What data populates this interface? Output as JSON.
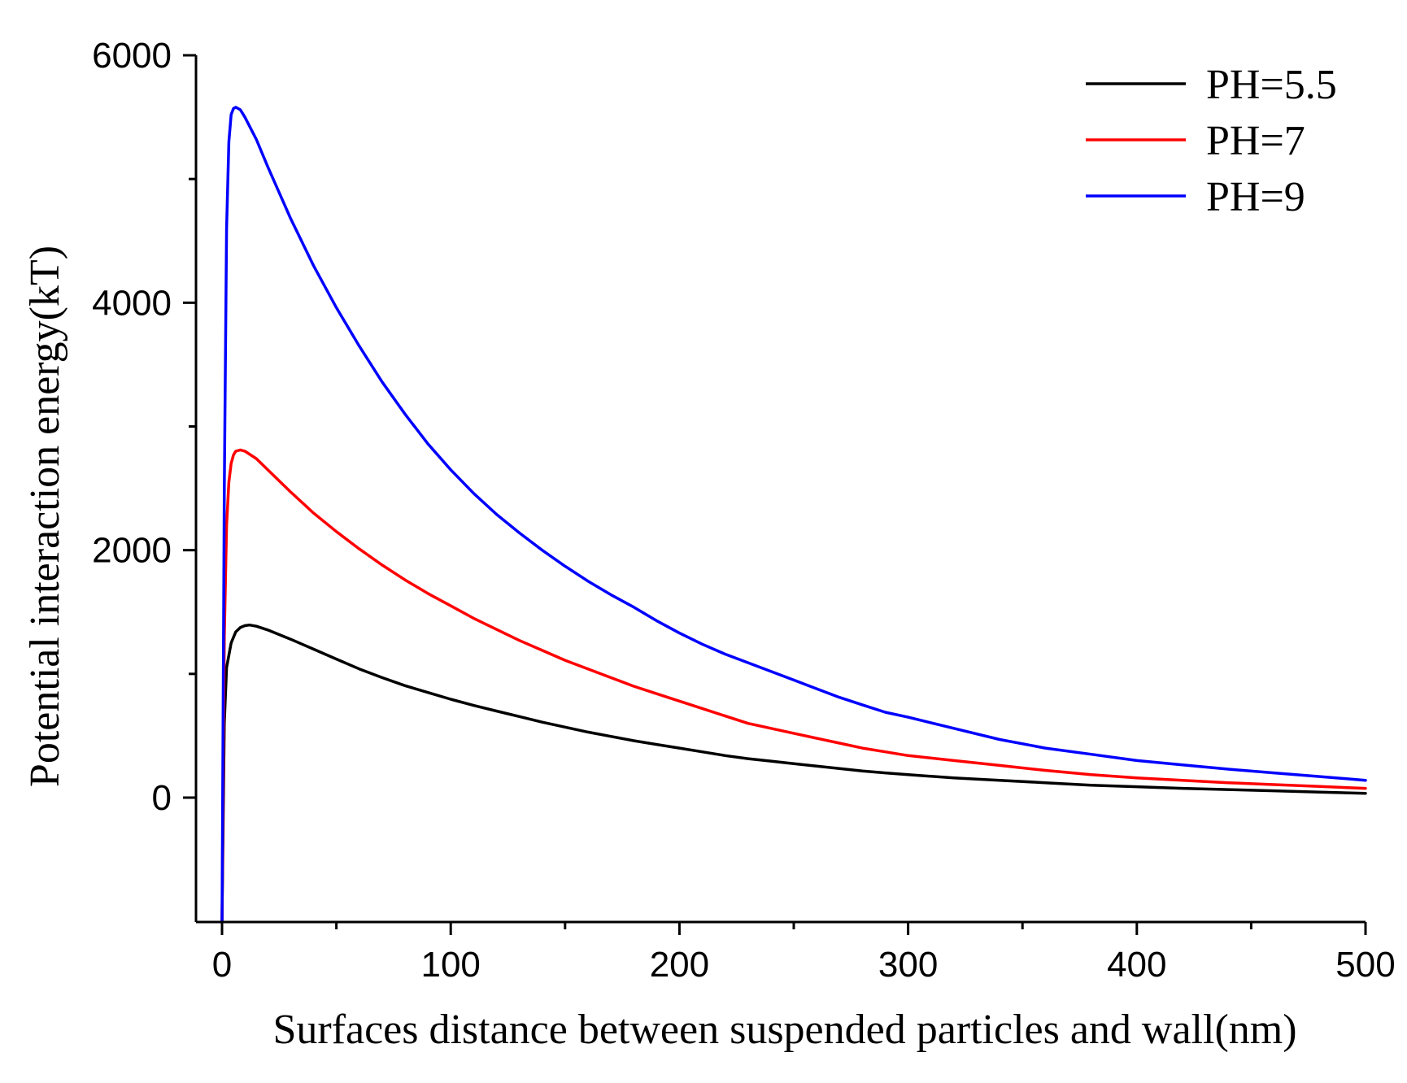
{
  "chart_data": {
    "type": "line",
    "xlabel": "Surfaces distance between suspended particles and wall(nm)",
    "ylabel": "Potential interaction energy(kT)",
    "xlim": [
      -12,
      500
    ],
    "ylim": [
      -1000,
      6000
    ],
    "x_ticks": [
      0,
      100,
      200,
      300,
      400,
      500
    ],
    "x_minor_ticks": [
      50,
      150,
      250,
      350,
      450
    ],
    "y_ticks": [
      0,
      2000,
      4000,
      6000
    ],
    "y_minor_ticks": [
      1000,
      3000,
      5000
    ],
    "grid": false,
    "legend_position": "top-right",
    "series": [
      {
        "name": "PH=5.5",
        "color": "#000000",
        "points": [
          [
            0,
            -1000
          ],
          [
            1,
            600
          ],
          [
            2,
            1050
          ],
          [
            4,
            1250
          ],
          [
            6,
            1340
          ],
          [
            8,
            1375
          ],
          [
            10,
            1390
          ],
          [
            12,
            1395
          ],
          [
            15,
            1385
          ],
          [
            20,
            1355
          ],
          [
            30,
            1280
          ],
          [
            40,
            1200
          ],
          [
            50,
            1120
          ],
          [
            60,
            1040
          ],
          [
            70,
            970
          ],
          [
            80,
            905
          ],
          [
            90,
            850
          ],
          [
            100,
            795
          ],
          [
            110,
            745
          ],
          [
            120,
            700
          ],
          [
            130,
            655
          ],
          [
            140,
            610
          ],
          [
            150,
            570
          ],
          [
            160,
            530
          ],
          [
            170,
            495
          ],
          [
            180,
            460
          ],
          [
            190,
            430
          ],
          [
            200,
            400
          ],
          [
            210,
            370
          ],
          [
            220,
            340
          ],
          [
            230,
            315
          ],
          [
            240,
            295
          ],
          [
            250,
            275
          ],
          [
            260,
            255
          ],
          [
            270,
            235
          ],
          [
            280,
            215
          ],
          [
            290,
            200
          ],
          [
            300,
            185
          ],
          [
            320,
            160
          ],
          [
            340,
            140
          ],
          [
            360,
            120
          ],
          [
            380,
            100
          ],
          [
            400,
            88
          ],
          [
            420,
            75
          ],
          [
            440,
            65
          ],
          [
            460,
            55
          ],
          [
            480,
            45
          ],
          [
            500,
            35
          ]
        ]
      },
      {
        "name": "PH=7",
        "color": "#ff0000",
        "points": [
          [
            0,
            -1000
          ],
          [
            1,
            1300
          ],
          [
            2,
            2200
          ],
          [
            3,
            2550
          ],
          [
            4,
            2700
          ],
          [
            5,
            2770
          ],
          [
            6,
            2800
          ],
          [
            8,
            2810
          ],
          [
            10,
            2800
          ],
          [
            15,
            2740
          ],
          [
            20,
            2650
          ],
          [
            30,
            2470
          ],
          [
            40,
            2300
          ],
          [
            50,
            2150
          ],
          [
            60,
            2010
          ],
          [
            70,
            1880
          ],
          [
            80,
            1760
          ],
          [
            90,
            1650
          ],
          [
            100,
            1550
          ],
          [
            110,
            1450
          ],
          [
            120,
            1360
          ],
          [
            130,
            1270
          ],
          [
            140,
            1190
          ],
          [
            150,
            1110
          ],
          [
            160,
            1040
          ],
          [
            170,
            970
          ],
          [
            180,
            900
          ],
          [
            190,
            840
          ],
          [
            200,
            780
          ],
          [
            210,
            720
          ],
          [
            220,
            660
          ],
          [
            230,
            600
          ],
          [
            240,
            560
          ],
          [
            250,
            520
          ],
          [
            260,
            480
          ],
          [
            270,
            440
          ],
          [
            280,
            400
          ],
          [
            290,
            370
          ],
          [
            300,
            340
          ],
          [
            320,
            300
          ],
          [
            340,
            260
          ],
          [
            360,
            220
          ],
          [
            380,
            185
          ],
          [
            400,
            160
          ],
          [
            420,
            140
          ],
          [
            440,
            120
          ],
          [
            460,
            105
          ],
          [
            480,
            90
          ],
          [
            500,
            75
          ]
        ]
      },
      {
        "name": "PH=9",
        "color": "#0000ff",
        "points": [
          [
            0,
            -1000
          ],
          [
            1,
            2500
          ],
          [
            2,
            4600
          ],
          [
            3,
            5300
          ],
          [
            4,
            5520
          ],
          [
            5,
            5570
          ],
          [
            6,
            5580
          ],
          [
            8,
            5560
          ],
          [
            10,
            5500
          ],
          [
            15,
            5320
          ],
          [
            20,
            5100
          ],
          [
            30,
            4680
          ],
          [
            40,
            4300
          ],
          [
            50,
            3960
          ],
          [
            60,
            3650
          ],
          [
            70,
            3360
          ],
          [
            80,
            3100
          ],
          [
            90,
            2860
          ],
          [
            100,
            2650
          ],
          [
            110,
            2460
          ],
          [
            120,
            2290
          ],
          [
            130,
            2140
          ],
          [
            140,
            2000
          ],
          [
            150,
            1870
          ],
          [
            160,
            1750
          ],
          [
            170,
            1640
          ],
          [
            180,
            1540
          ],
          [
            190,
            1430
          ],
          [
            200,
            1330
          ],
          [
            210,
            1240
          ],
          [
            220,
            1160
          ],
          [
            230,
            1090
          ],
          [
            240,
            1020
          ],
          [
            250,
            950
          ],
          [
            260,
            880
          ],
          [
            270,
            810
          ],
          [
            280,
            750
          ],
          [
            290,
            690
          ],
          [
            300,
            650
          ],
          [
            320,
            560
          ],
          [
            340,
            470
          ],
          [
            360,
            400
          ],
          [
            380,
            350
          ],
          [
            400,
            300
          ],
          [
            420,
            265
          ],
          [
            440,
            230
          ],
          [
            460,
            200
          ],
          [
            480,
            170
          ],
          [
            500,
            140
          ]
        ]
      }
    ]
  }
}
